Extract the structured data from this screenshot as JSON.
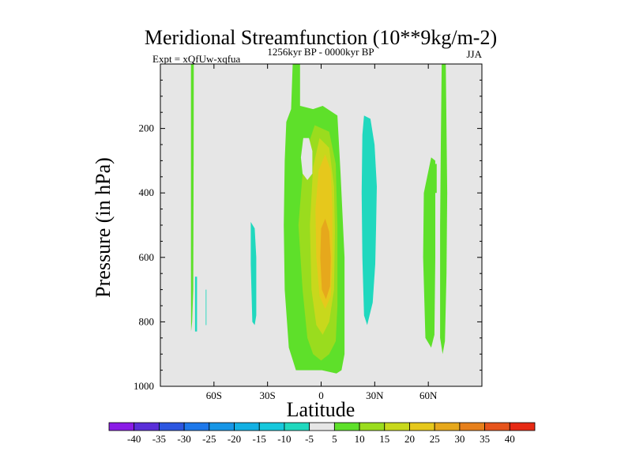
{
  "chart_data": {
    "type": "heatmap",
    "title": "Meridional Streamfunction (10**9kg/m-2)",
    "subtitle_left": "Expt = xQfUw-xqfua",
    "subtitle_center": "1256kyr BP - 0000kyr BP",
    "subtitle_right": "JJA",
    "xlabel": "Latitude",
    "ylabel": "Pressure (in hPa)",
    "xlim": [
      -90,
      90
    ],
    "ylim": [
      0,
      1000
    ],
    "y_inverted": true,
    "x_ticks": [
      {
        "value": -60,
        "label": "60S"
      },
      {
        "value": -30,
        "label": "30S"
      },
      {
        "value": 0,
        "label": "0"
      },
      {
        "value": 30,
        "label": "30N"
      },
      {
        "value": 60,
        "label": "60N"
      }
    ],
    "y_ticks": [
      {
        "value": 200,
        "label": "200"
      },
      {
        "value": 400,
        "label": "400"
      },
      {
        "value": 600,
        "label": "600"
      },
      {
        "value": 800,
        "label": "800"
      },
      {
        "value": 1000,
        "label": "1000"
      }
    ],
    "background_color": "#e6e6e6",
    "contour_levels": [
      -40,
      -35,
      -30,
      -25,
      -20,
      -15,
      -10,
      -5,
      5,
      10,
      15,
      20,
      25,
      30,
      35,
      40
    ],
    "colorbar_labels": [
      "-40",
      "-35",
      "-30",
      "-25",
      "-20",
      "-15",
      "-10",
      "-5",
      "5",
      "10",
      "15",
      "20",
      "25",
      "30",
      "35",
      "40"
    ],
    "colorbar_colors": [
      "#8a1ce6",
      "#5a2fd8",
      "#2c56e0",
      "#1e78ea",
      "#1796e6",
      "#13b0e3",
      "#16c8dc",
      "#20d8be",
      "#e6e6e6",
      "#5ee02a",
      "#9adc1e",
      "#c8d81c",
      "#e6c81c",
      "#e6a81c",
      "#e6801c",
      "#e6541c",
      "#e62a14"
    ],
    "regions": [
      {
        "name": "sh-polar-positive-strip",
        "value": 5,
        "color": "#5ee02a",
        "polygon": [
          [
            -72.9,
            0
          ],
          [
            -71.3,
            0
          ],
          [
            -71.4,
            300
          ],
          [
            -71.6,
            700
          ],
          [
            -72.2,
            800
          ],
          [
            -72.8,
            830
          ],
          [
            -72.9,
            600
          ]
        ]
      },
      {
        "name": "sh-subpolar-negative-specks",
        "value": -5,
        "color": "#20d8be",
        "polygon": [
          [
            -70.6,
            660
          ],
          [
            -69.5,
            660
          ],
          [
            -69.5,
            830
          ],
          [
            -70.6,
            830
          ]
        ]
      },
      {
        "name": "sh-subpolar-negative-speck-2",
        "value": -5,
        "color": "#20d8be",
        "polygon": [
          [
            -64.6,
            700
          ],
          [
            -64.2,
            700
          ],
          [
            -64.2,
            810
          ],
          [
            -64.6,
            810
          ]
        ]
      },
      {
        "name": "sh-midlatitude-negative-cell",
        "value": -5,
        "color": "#20d8be",
        "polygon": [
          [
            -39.4,
            490
          ],
          [
            -37.2,
            510
          ],
          [
            -36.3,
            600
          ],
          [
            -36.3,
            780
          ],
          [
            -37.2,
            810
          ],
          [
            -38.5,
            800
          ],
          [
            -39.4,
            620
          ]
        ]
      },
      {
        "name": "hadley-cell-5",
        "value": 5,
        "color": "#5ee02a",
        "polygon": [
          [
            -15.9,
            0
          ],
          [
            -11.8,
            0
          ],
          [
            -11.8,
            130
          ],
          [
            -4.5,
            140
          ],
          [
            0.9,
            130
          ],
          [
            9.1,
            160
          ],
          [
            10.9,
            340
          ],
          [
            13.1,
            600
          ],
          [
            13.1,
            900
          ],
          [
            11.4,
            950
          ],
          [
            8.6,
            960
          ],
          [
            0.4,
            950
          ],
          [
            -8.1,
            950
          ],
          [
            -14.1,
            950
          ],
          [
            -18.1,
            880
          ],
          [
            -20.4,
            700
          ],
          [
            -20.9,
            500
          ],
          [
            -20.4,
            300
          ],
          [
            -19.5,
            180
          ],
          [
            -16.8,
            140
          ]
        ]
      },
      {
        "name": "hadley-cell-10",
        "value": 10,
        "color": "#9adc1e",
        "polygon": [
          [
            -3.6,
            190
          ],
          [
            4.5,
            210
          ],
          [
            8.2,
            310
          ],
          [
            9.1,
            500
          ],
          [
            9.1,
            750
          ],
          [
            8.2,
            860
          ],
          [
            4.5,
            900
          ],
          [
            0.0,
            920
          ],
          [
            -4.5,
            900
          ],
          [
            -7.7,
            850
          ],
          [
            -10.4,
            700
          ],
          [
            -12.7,
            500
          ],
          [
            -10.4,
            340
          ],
          [
            -7.2,
            250
          ]
        ]
      },
      {
        "name": "hadley-cell-15",
        "value": 15,
        "color": "#c8d81c",
        "polygon": [
          [
            -0.9,
            230
          ],
          [
            4.5,
            260
          ],
          [
            7.2,
            380
          ],
          [
            7.7,
            520
          ],
          [
            7.2,
            700
          ],
          [
            4.5,
            800
          ],
          [
            0.9,
            840
          ],
          [
            -2.7,
            810
          ],
          [
            -5.4,
            700
          ],
          [
            -6.3,
            500
          ],
          [
            -4.5,
            320
          ]
        ]
      },
      {
        "name": "hadley-cell-20",
        "value": 20,
        "color": "#e6c81c",
        "polygon": [
          [
            2.3,
            280
          ],
          [
            5.4,
            330
          ],
          [
            6.3,
            450
          ],
          [
            6.3,
            620
          ],
          [
            5.4,
            720
          ],
          [
            2.3,
            760
          ],
          [
            -0.9,
            720
          ],
          [
            -2.7,
            600
          ],
          [
            -3.2,
            450
          ],
          [
            -1.4,
            330
          ]
        ]
      },
      {
        "name": "hadley-cell-25",
        "value": 25,
        "color": "#e6a81c",
        "polygon": [
          [
            2.3,
            480
          ],
          [
            4.5,
            520
          ],
          [
            5.4,
            600
          ],
          [
            5.0,
            690
          ],
          [
            2.7,
            730
          ],
          [
            0.4,
            700
          ],
          [
            -0.5,
            600
          ],
          [
            0.0,
            510
          ]
        ]
      },
      {
        "name": "hadley-cell-gap",
        "value": 0,
        "color": "#e6e6e6",
        "polygon": [
          [
            -10.0,
            230
          ],
          [
            -6.8,
            230
          ],
          [
            -4.9,
            270
          ],
          [
            -4.9,
            340
          ],
          [
            -7.7,
            360
          ],
          [
            -10.4,
            340
          ],
          [
            -11.3,
            290
          ]
        ]
      },
      {
        "name": "nh-tropical-negative-cell",
        "value": -5,
        "color": "#20d8be",
        "polygon": [
          [
            24.0,
            160
          ],
          [
            27.6,
            170
          ],
          [
            29.9,
            250
          ],
          [
            31.2,
            380
          ],
          [
            30.8,
            500
          ],
          [
            30.3,
            620
          ],
          [
            28.9,
            740
          ],
          [
            25.8,
            810
          ],
          [
            24.0,
            780
          ],
          [
            23.1,
            600
          ],
          [
            22.7,
            400
          ],
          [
            23.1,
            220
          ]
        ]
      },
      {
        "name": "nh-midlatitude-positive-cell",
        "value": 5,
        "color": "#5ee02a",
        "polygon": [
          [
            61.6,
            290
          ],
          [
            63.9,
            300
          ],
          [
            63.9,
            600
          ],
          [
            63.4,
            840
          ],
          [
            61.6,
            880
          ],
          [
            58.4,
            850
          ],
          [
            57.1,
            600
          ],
          [
            57.5,
            400
          ]
        ]
      },
      {
        "name": "nh-subpolar-positive-speck",
        "value": 5,
        "color": "#5ee02a",
        "polygon": [
          [
            63.4,
            310
          ],
          [
            64.7,
            310
          ],
          [
            64.7,
            400
          ],
          [
            63.4,
            400
          ]
        ]
      },
      {
        "name": "nh-polar-positive-strip",
        "value": 5,
        "color": "#5ee02a",
        "polygon": [
          [
            67.5,
            0
          ],
          [
            69.8,
            0
          ],
          [
            70.2,
            200
          ],
          [
            70.6,
            400
          ],
          [
            70.2,
            650
          ],
          [
            69.3,
            860
          ],
          [
            68.0,
            900
          ],
          [
            66.6,
            850
          ],
          [
            66.6,
            500
          ],
          [
            67.0,
            250
          ]
        ]
      }
    ]
  }
}
